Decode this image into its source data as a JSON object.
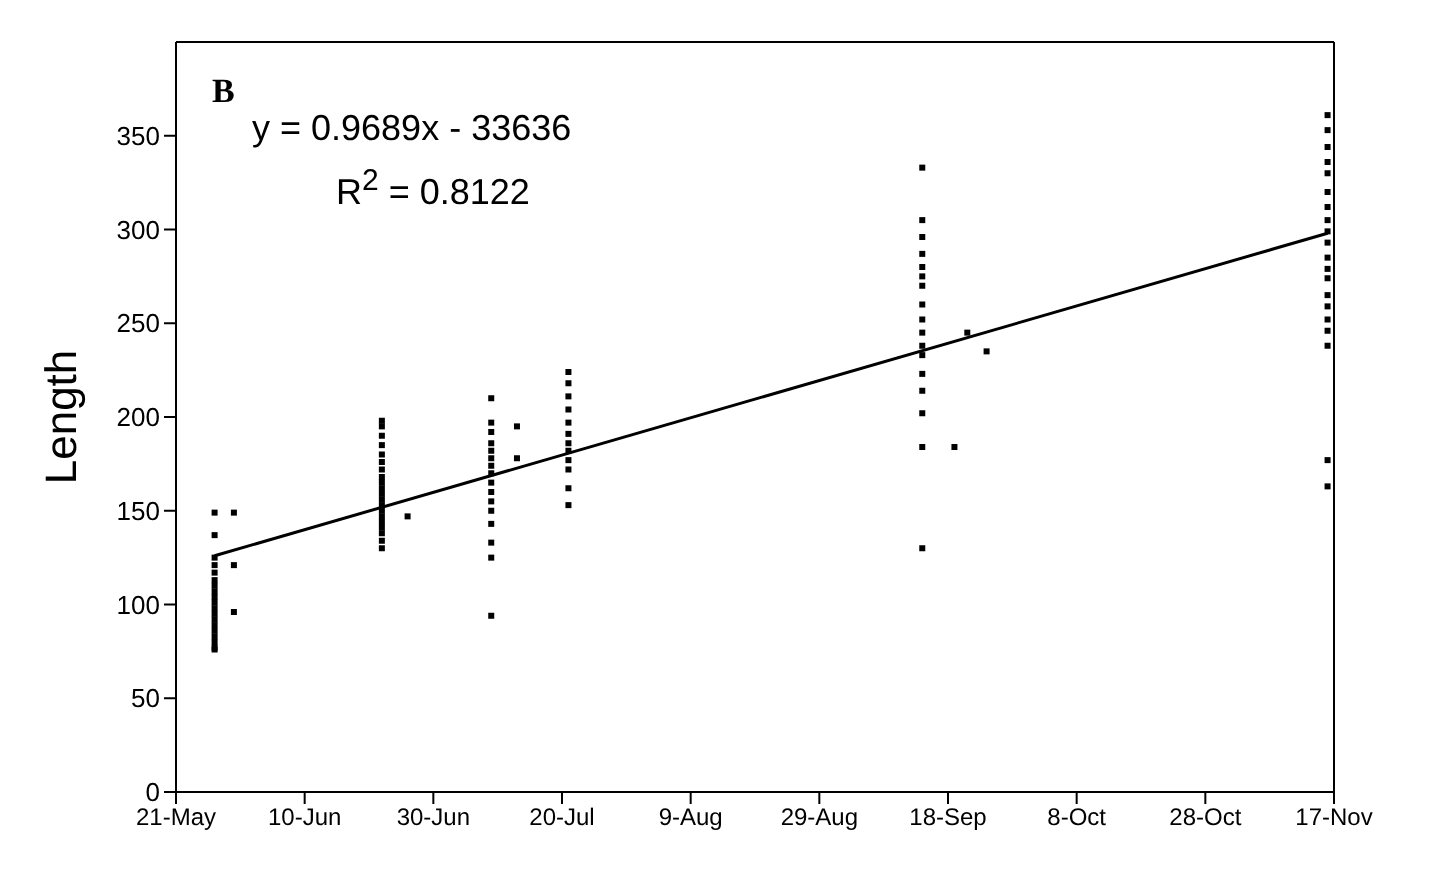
{
  "chart_data": {
    "type": "scatter",
    "ylabel": "Length",
    "annotations": [
      "B",
      "y = 0.9689x - 33636",
      "R$^{2}$ = 0.8122"
    ],
    "xlim": [
      "--05-21",
      "--11-17"
    ],
    "xticks": [
      {
        "value": "--05-21",
        "label": "21-May"
      },
      {
        "value": "--06-10",
        "label": "10-Jun"
      },
      {
        "value": "--06-30",
        "label": "30-Jun"
      },
      {
        "value": "--07-20",
        "label": "20-Jul"
      },
      {
        "value": "--08-09",
        "label": "9-Aug"
      },
      {
        "value": "--08-29",
        "label": "29-Aug"
      },
      {
        "value": "--09-18",
        "label": "18-Sep"
      },
      {
        "value": "--10-08",
        "label": "8-Oct"
      },
      {
        "value": "--10-28",
        "label": "28-Oct"
      },
      {
        "value": "--11-17",
        "label": "17-Nov"
      }
    ],
    "ylim": [
      0,
      400
    ],
    "yticks": [
      0,
      50,
      100,
      150,
      200,
      250,
      300,
      350
    ],
    "marker": "square",
    "series": [
      {
        "color": "#000000",
        "x": [
          "--05-27",
          "--05-27",
          "--05-27",
          "--05-27",
          "--05-27",
          "--05-27",
          "--05-27",
          "--05-27",
          "--05-27",
          "--05-27",
          "--05-27",
          "--05-27",
          "--05-27",
          "--05-27",
          "--05-27",
          "--05-27",
          "--05-27",
          "--05-27",
          "--05-27",
          "--05-30",
          "--05-30",
          "--05-30",
          "--06-22",
          "--06-22",
          "--06-22",
          "--06-22",
          "--06-22",
          "--06-22",
          "--06-22",
          "--06-22",
          "--06-22",
          "--06-22",
          "--06-22",
          "--06-22",
          "--06-22",
          "--06-22",
          "--06-22",
          "--06-22",
          "--06-22",
          "--06-22",
          "--06-22",
          "--06-22",
          "--06-26",
          "--07-09",
          "--07-09",
          "--07-09",
          "--07-09",
          "--07-09",
          "--07-09",
          "--07-09",
          "--07-09",
          "--07-09",
          "--07-09",
          "--07-09",
          "--07-09",
          "--07-09",
          "--07-09",
          "--07-09",
          "--07-09",
          "--07-13",
          "--07-13",
          "--07-21",
          "--07-21",
          "--07-21",
          "--07-21",
          "--07-21",
          "--07-21",
          "--07-21",
          "--07-21",
          "--07-21",
          "--07-21",
          "--07-21",
          "--07-21",
          "--09-14",
          "--09-14",
          "--09-14",
          "--09-14",
          "--09-14",
          "--09-14",
          "--09-14",
          "--09-14",
          "--09-14",
          "--09-14",
          "--09-14",
          "--09-14",
          "--09-14",
          "--09-14",
          "--09-14",
          "--09-14",
          "--09-14",
          "--09-19",
          "--09-21",
          "--09-24",
          "--11-16",
          "--11-16",
          "--11-16",
          "--11-16",
          "--11-16",
          "--11-16",
          "--11-16",
          "--11-16",
          "--11-16",
          "--11-16",
          "--11-16",
          "--11-16",
          "--11-16",
          "--11-16",
          "--11-16",
          "--11-16",
          "--11-16",
          "--11-16",
          "--11-16",
          "--11-16"
        ],
        "values": [
          149,
          137,
          125,
          121,
          117,
          113,
          110,
          107,
          104,
          101,
          98,
          95,
          92,
          89,
          86,
          83,
          80,
          77,
          76,
          149,
          121,
          96,
          198,
          195,
          190,
          185,
          180,
          176,
          172,
          168,
          165,
          162,
          159,
          156,
          153,
          150,
          147,
          144,
          141,
          138,
          134,
          130,
          147,
          210,
          197,
          192,
          186,
          182,
          178,
          174,
          170,
          165,
          160,
          155,
          150,
          143,
          133,
          125,
          94,
          195,
          178,
          224,
          218,
          211,
          204,
          197,
          191,
          186,
          182,
          177,
          172,
          162,
          153,
          333,
          305,
          296,
          287,
          280,
          275,
          270,
          260,
          252,
          245,
          238,
          233,
          223,
          214,
          202,
          184,
          130,
          184,
          245,
          235,
          361,
          353,
          344,
          336,
          330,
          320,
          312,
          305,
          299,
          293,
          285,
          279,
          274,
          265,
          259,
          252,
          246,
          238,
          177,
          163
        ]
      },
      {
        "type": "line",
        "color": "#000000",
        "marker": "none",
        "x": [
          "--05-27",
          "--11-16"
        ],
        "values": [
          126,
          298
        ]
      }
    ]
  }
}
